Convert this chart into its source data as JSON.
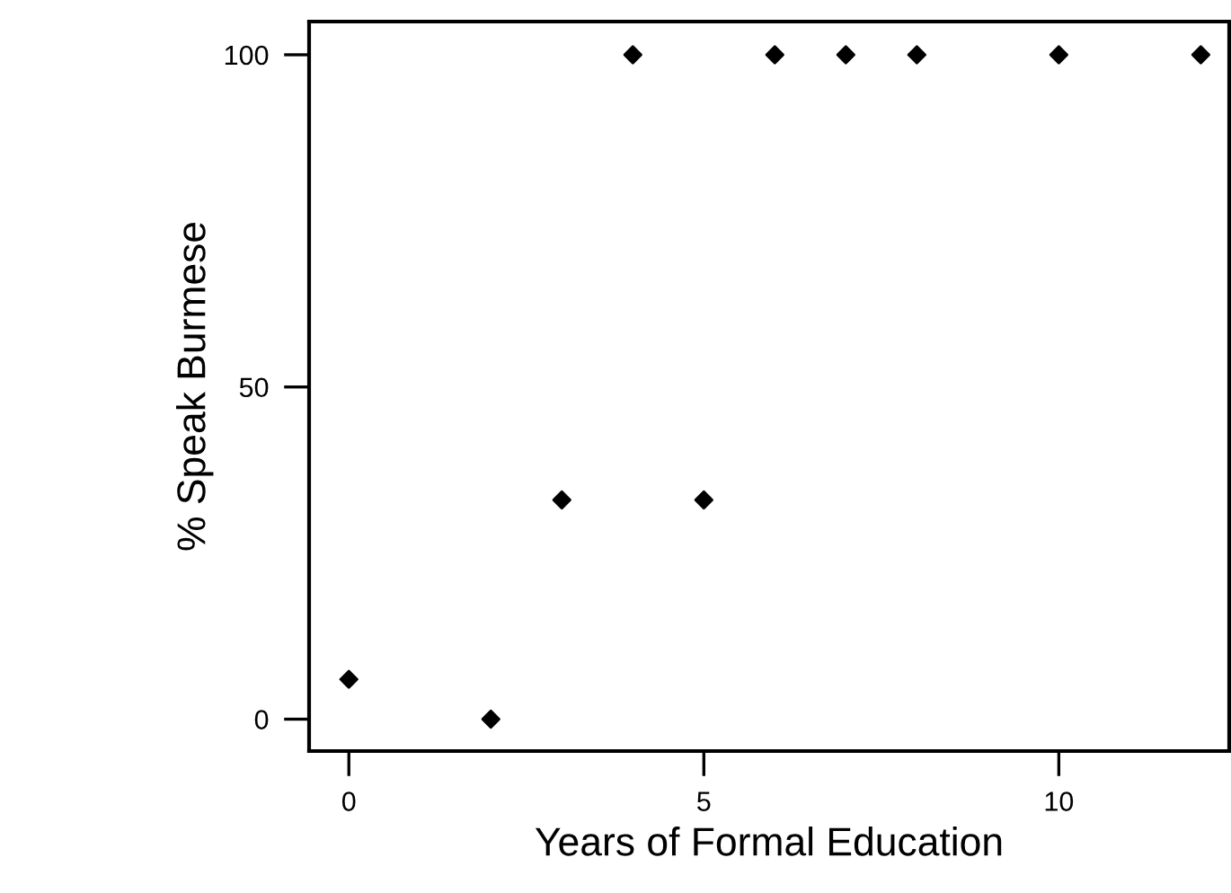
{
  "chart_data": {
    "type": "scatter",
    "xlabel": "Years of Formal Education",
    "ylabel": "% Speak Burmese",
    "x": [
      0,
      2,
      3,
      4,
      5,
      6,
      7,
      8,
      10,
      12
    ],
    "values": [
      6,
      0,
      33,
      100,
      33,
      100,
      100,
      100,
      100,
      100
    ],
    "color": "#000000",
    "marker": "diamond",
    "xlim": [
      -0.56,
      12.4
    ],
    "ylim": [
      -4.8,
      105
    ],
    "xticks": [
      0,
      5,
      10
    ],
    "yticks": [
      0,
      50,
      100
    ],
    "grid": false,
    "legend": false
  }
}
